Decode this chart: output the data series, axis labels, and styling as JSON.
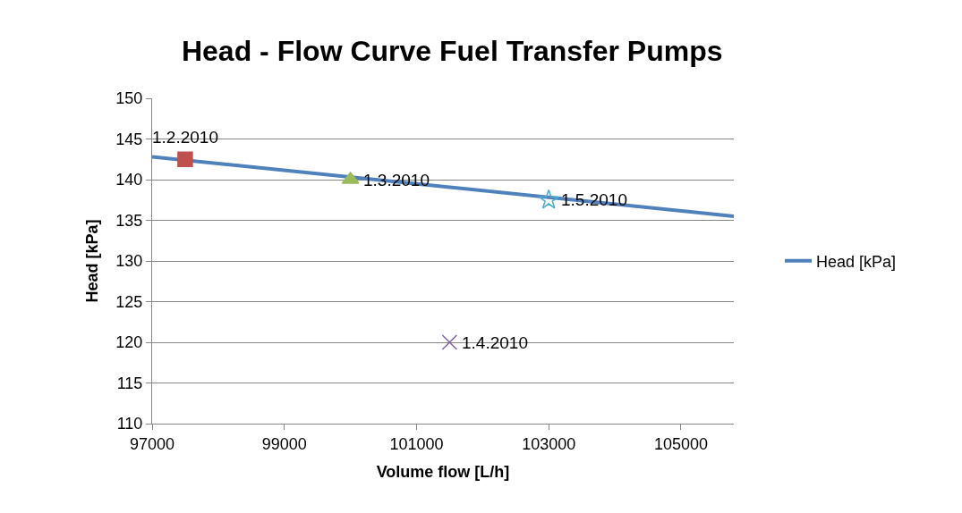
{
  "chart_data": {
    "type": "scatter",
    "title": "Head - Flow Curve Fuel Transfer Pumps",
    "xlabel": "Volume flow [L/h]",
    "ylabel": "Head [kPa]",
    "xlim": [
      97000,
      105800
    ],
    "xticks": [
      97000,
      99000,
      101000,
      103000,
      105000
    ],
    "ylim": [
      110,
      150
    ],
    "yticks": [
      110,
      115,
      120,
      125,
      130,
      135,
      140,
      145,
      150
    ],
    "grid": "y",
    "legend": "right",
    "series": [
      {
        "name": "Head [kPa]",
        "type": "line",
        "color": "#4f81bd",
        "marker": "none",
        "line_style": "solid",
        "x": [
          97000,
          105800
        ],
        "values": [
          142.8,
          135.5
        ]
      },
      {
        "color": "#c0504d",
        "marker": "square",
        "x": [
          97500
        ],
        "values": [
          142.5
        ]
      },
      {
        "color": "#9bbb59",
        "marker": "triangle",
        "x": [
          100000
        ],
        "values": [
          140
        ]
      },
      {
        "color": "#8064a2",
        "marker": "cross",
        "x": [
          101500
        ],
        "values": [
          120
        ]
      },
      {
        "color": "#4bacc6",
        "marker": "star",
        "x": [
          103000
        ],
        "values": [
          137.5
        ]
      }
    ],
    "annotations": [
      {
        "text": "1.2.2010",
        "x": 97500,
        "y": 142.5
      },
      {
        "text": "1.3.2010",
        "x": 100000,
        "y": 140
      },
      {
        "text": "1.4.2010",
        "x": 101500,
        "y": 120
      },
      {
        "text": "1.5.2010",
        "x": 103000,
        "y": 137.5
      }
    ]
  }
}
